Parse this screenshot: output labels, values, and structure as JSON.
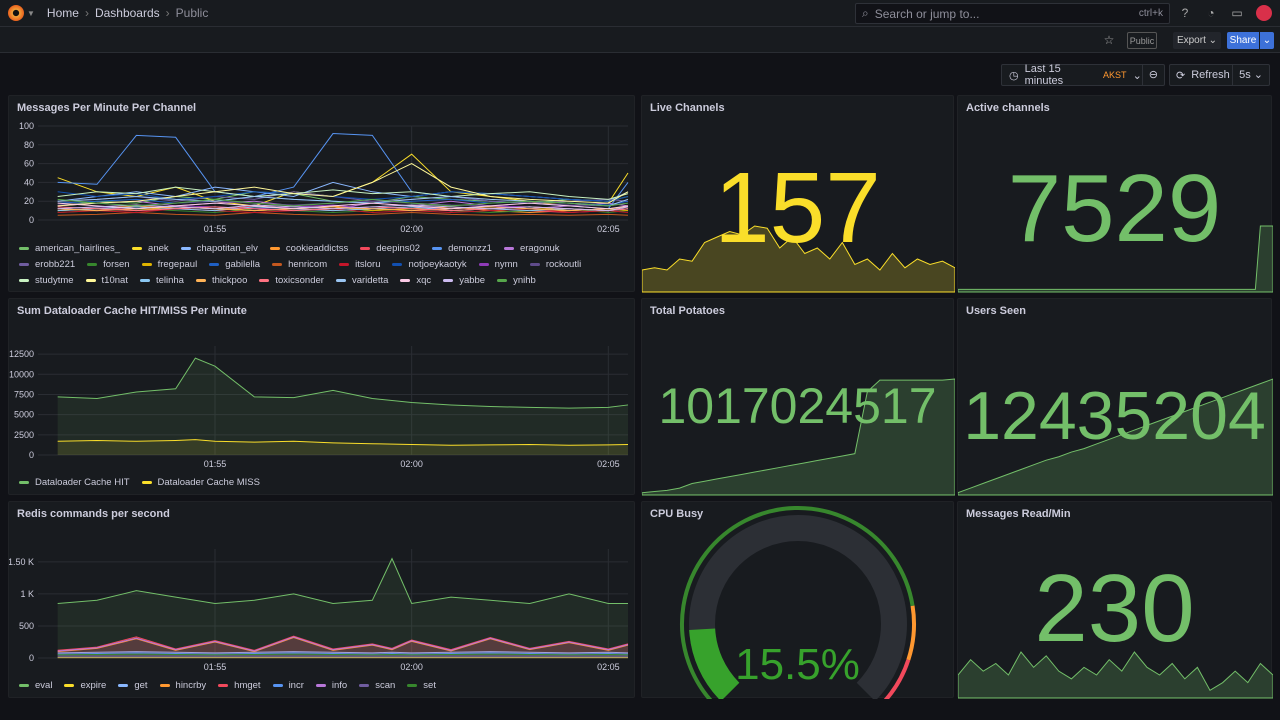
{
  "topbar": {
    "breadcrumbs": [
      "Home",
      "Dashboards",
      "Public"
    ],
    "search_placeholder": "Search or jump to...",
    "search_shortcut": "ctrl+k"
  },
  "toolbar": {
    "public_badge": "Public",
    "export_label": "Export",
    "share_label": "Share",
    "time_range": "Last 15 minutes",
    "timezone": "AKST",
    "refresh_label": "Refresh",
    "refresh_interval": "5s"
  },
  "colors": {
    "green": "#73bf69",
    "yellow": "#fade2a",
    "orange": "#ff9830",
    "red": "#f2495c",
    "blue": "#3d71d9"
  },
  "panels": {
    "messages_per_minute": {
      "title": "Messages Per Minute Per Channel"
    },
    "dataloader": {
      "title": "Sum Dataloader Cache HIT/MISS Per Minute"
    },
    "redis": {
      "title": "Redis commands per second"
    },
    "live_channels": {
      "title": "Live Channels",
      "value": "157",
      "color": "#fade2a",
      "spark": [
        20,
        22,
        20,
        30,
        28,
        45,
        50,
        55,
        52,
        60,
        58,
        40,
        50,
        35,
        40,
        30,
        45,
        25,
        30,
        20,
        35,
        22,
        30,
        25,
        28,
        22
      ]
    },
    "active_channels": {
      "title": "Active channels",
      "value": "7529",
      "color": "#73bf69",
      "spark": [
        2,
        2,
        2,
        2,
        2,
        2,
        2,
        2,
        2,
        2,
        2,
        2,
        2,
        2,
        2,
        2,
        2,
        2,
        2,
        2,
        2,
        2,
        2,
        2,
        50,
        50
      ]
    },
    "total_potatoes": {
      "title": "Total Potatoes",
      "value": "1017024517",
      "color": "#73bf69",
      "spark": [
        2,
        3,
        4,
        6,
        10,
        12,
        14,
        16,
        18,
        20,
        22,
        24,
        26,
        28,
        30,
        32,
        34,
        36,
        90,
        100,
        100,
        100,
        100,
        100,
        100,
        101
      ]
    },
    "users_seen": {
      "title": "Users Seen",
      "value": "12435204",
      "color": "#73bf69",
      "spark": [
        2,
        6,
        10,
        14,
        18,
        22,
        26,
        30,
        33,
        37,
        40,
        44,
        48,
        52,
        56,
        60,
        64,
        68,
        72,
        76,
        80,
        84,
        88,
        92,
        96,
        100
      ]
    },
    "cpu_busy": {
      "title": "CPU Busy",
      "value": "15.5%",
      "percent": 15.5,
      "thresholds": [
        "#37872d",
        "#ff9830",
        "#f2495c"
      ]
    },
    "messages_read": {
      "title": "Messages Read/Min",
      "value": "230",
      "color": "#73bf69",
      "spark": [
        30,
        50,
        35,
        45,
        30,
        60,
        40,
        55,
        35,
        25,
        40,
        30,
        50,
        35,
        60,
        40,
        30,
        45,
        25,
        40,
        10,
        20,
        35,
        20,
        45,
        30
      ]
    }
  },
  "chart_data": [
    {
      "type": "line",
      "title": "Messages Per Minute Per Channel",
      "x": [
        "01:51",
        "01:52",
        "01:53",
        "01:54",
        "01:55",
        "01:56",
        "01:57",
        "01:58",
        "01:59",
        "02:00",
        "02:01",
        "02:02",
        "02:03",
        "02:04",
        "02:05",
        "02:05:30"
      ],
      "xticks": [
        "01:55",
        "02:00",
        "02:05"
      ],
      "xlim": [
        "01:50:30",
        "02:05:30"
      ],
      "ylim": [
        0,
        100
      ],
      "yticks": [
        "0",
        "20",
        "40",
        "60",
        "80",
        "100"
      ],
      "legend": "bottom",
      "series": [
        {
          "name": "american_hairlines_",
          "color": "#73bf69",
          "values": [
            15,
            20,
            18,
            25,
            22,
            30,
            28,
            20,
            18,
            25,
            22,
            20,
            18,
            22,
            20,
            25
          ]
        },
        {
          "name": "anek",
          "color": "#fade2a",
          "values": [
            45,
            30,
            25,
            35,
            20,
            15,
            30,
            25,
            40,
            70,
            30,
            25,
            20,
            15,
            18,
            50
          ]
        },
        {
          "name": "chapotitan_elv",
          "color": "#8ab8ff",
          "values": [
            20,
            25,
            30,
            25,
            35,
            30,
            25,
            40,
            30,
            25,
            30,
            28,
            25,
            22,
            20,
            30
          ]
        },
        {
          "name": "cookieaddictss",
          "color": "#ff9830",
          "values": [
            10,
            12,
            15,
            12,
            14,
            10,
            12,
            15,
            10,
            12,
            14,
            10,
            8,
            10,
            12,
            10
          ]
        },
        {
          "name": "deepins02",
          "color": "#f2495c",
          "values": [
            12,
            10,
            14,
            12,
            10,
            15,
            12,
            10,
            12,
            14,
            10,
            12,
            10,
            8,
            10,
            12
          ]
        },
        {
          "name": "demonzz1",
          "color": "#5794f2",
          "values": [
            40,
            38,
            90,
            88,
            30,
            25,
            35,
            92,
            90,
            30,
            25,
            20,
            18,
            15,
            12,
            40
          ]
        },
        {
          "name": "eragonuk",
          "color": "#b877d9",
          "values": [
            15,
            18,
            20,
            15,
            18,
            20,
            15,
            12,
            18,
            15,
            20,
            15,
            12,
            15,
            18,
            15
          ]
        },
        {
          "name": "erobb221",
          "color": "#705da0",
          "values": [
            20,
            22,
            25,
            20,
            25,
            22,
            30,
            25,
            20,
            22,
            25,
            20,
            18,
            20,
            22,
            20
          ]
        },
        {
          "name": "forsen",
          "color": "#37872d",
          "values": [
            8,
            10,
            12,
            10,
            8,
            12,
            10,
            8,
            10,
            12,
            10,
            8,
            10,
            12,
            8,
            10
          ]
        },
        {
          "name": "fregepaul",
          "color": "#e0b400",
          "values": [
            10,
            12,
            10,
            14,
            12,
            10,
            12,
            14,
            10,
            12,
            10,
            12,
            14,
            10,
            12,
            10
          ]
        },
        {
          "name": "gabilella",
          "color": "#1f60c4",
          "values": [
            18,
            20,
            22,
            18,
            20,
            25,
            22,
            20,
            18,
            20,
            22,
            18,
            20,
            18,
            16,
            20
          ]
        },
        {
          "name": "henricom",
          "color": "#c4581f",
          "values": [
            5,
            6,
            8,
            6,
            5,
            8,
            6,
            5,
            6,
            8,
            6,
            5,
            6,
            5,
            6,
            5
          ]
        },
        {
          "name": "itsloru",
          "color": "#c4162a",
          "values": [
            8,
            10,
            8,
            12,
            10,
            8,
            10,
            12,
            8,
            10,
            8,
            10,
            12,
            8,
            10,
            8
          ]
        },
        {
          "name": "notjoeykaotyk",
          "color": "#1250b0",
          "values": [
            30,
            25,
            28,
            22,
            25,
            30,
            28,
            25,
            22,
            25,
            30,
            28,
            25,
            22,
            20,
            25
          ]
        },
        {
          "name": "nymn",
          "color": "#8f3bb8",
          "values": [
            12,
            14,
            12,
            15,
            14,
            12,
            14,
            16,
            12,
            14,
            12,
            15,
            14,
            12,
            10,
            12
          ]
        },
        {
          "name": "rockoutli",
          "color": "#5f4b8b",
          "values": [
            16,
            18,
            15,
            18,
            20,
            18,
            16,
            18,
            20,
            18,
            16,
            15,
            18,
            16,
            15,
            18
          ]
        },
        {
          "name": "studytme",
          "color": "#c8f2c2",
          "values": [
            25,
            30,
            28,
            35,
            30,
            25,
            28,
            32,
            28,
            30,
            25,
            28,
            30,
            25,
            22,
            28
          ]
        },
        {
          "name": "t10nat",
          "color": "#fff899",
          "values": [
            15,
            18,
            20,
            25,
            30,
            35,
            28,
            25,
            40,
            60,
            35,
            25,
            22,
            20,
            18,
            30
          ]
        },
        {
          "name": "telinha",
          "color": "#8ac7f2",
          "values": [
            10,
            12,
            14,
            12,
            10,
            14,
            12,
            10,
            12,
            14,
            10,
            12,
            10,
            12,
            10,
            12
          ]
        },
        {
          "name": "thickpoo",
          "color": "#ffb357",
          "values": [
            12,
            10,
            12,
            14,
            12,
            10,
            12,
            14,
            12,
            10,
            12,
            14,
            12,
            10,
            12,
            14
          ]
        },
        {
          "name": "toxicsonder",
          "color": "#ff7383",
          "values": [
            14,
            12,
            10,
            12,
            14,
            12,
            10,
            12,
            14,
            12,
            10,
            12,
            14,
            12,
            10,
            12
          ]
        },
        {
          "name": "varidetta",
          "color": "#9ac5f2",
          "values": [
            20,
            22,
            25,
            22,
            20,
            25,
            22,
            20,
            18,
            22,
            25,
            22,
            20,
            18,
            15,
            22
          ]
        },
        {
          "name": "xqc",
          "color": "#fbc9e6",
          "values": [
            18,
            15,
            12,
            15,
            18,
            15,
            12,
            15,
            18,
            15,
            12,
            15,
            18,
            15,
            12,
            15
          ]
        },
        {
          "name": "yabbe",
          "color": "#ccbbf0",
          "values": [
            12,
            14,
            16,
            14,
            12,
            16,
            14,
            12,
            14,
            16,
            14,
            12,
            14,
            12,
            10,
            14
          ]
        },
        {
          "name": "ynihb",
          "color": "#56a64b",
          "values": [
            22,
            18,
            15,
            18,
            22,
            18,
            15,
            18,
            22,
            18,
            15,
            18,
            20,
            18,
            15,
            18
          ]
        }
      ]
    },
    {
      "type": "area",
      "title": "Sum Dataloader Cache HIT/MISS Per Minute",
      "x": [
        "01:51",
        "01:52",
        "01:53",
        "01:54",
        "01:54:30",
        "01:55",
        "01:56",
        "01:57",
        "01:58",
        "01:59",
        "02:00",
        "02:01",
        "02:02",
        "02:03",
        "02:04",
        "02:05",
        "02:05:30"
      ],
      "xticks": [
        "01:55",
        "02:00",
        "02:05"
      ],
      "xlim": [
        "01:50:30",
        "02:05:30"
      ],
      "ylim": [
        0,
        13500
      ],
      "yticks": [
        "0",
        "2500",
        "5000",
        "7500",
        "10000",
        "12500"
      ],
      "legend": "bottom",
      "series": [
        {
          "name": "Dataloader Cache HIT",
          "color": "#73bf69",
          "values": [
            7200,
            7000,
            7800,
            8200,
            12000,
            11000,
            7200,
            7100,
            8000,
            7000,
            6500,
            6200,
            6000,
            5900,
            5800,
            5900,
            6200
          ]
        },
        {
          "name": "Dataloader Cache MISS",
          "color": "#fade2a",
          "values": [
            1700,
            1800,
            1700,
            1800,
            1900,
            1700,
            1600,
            1700,
            1500,
            1400,
            1300,
            1200,
            1250,
            1300,
            1200,
            1250,
            1300
          ]
        }
      ]
    },
    {
      "type": "area",
      "title": "Redis commands per second",
      "x": [
        "01:51",
        "01:52",
        "01:53",
        "01:54",
        "01:55",
        "01:56",
        "01:57",
        "01:58",
        "01:59",
        "01:59:30",
        "02:00",
        "02:01",
        "02:02",
        "02:03",
        "02:04",
        "02:05",
        "02:05:30"
      ],
      "xticks": [
        "01:55",
        "02:00",
        "02:05"
      ],
      "xlim": [
        "01:50:30",
        "02:05:30"
      ],
      "ylim": [
        0,
        1700
      ],
      "yticks": [
        "0",
        "500",
        "1 K",
        "1.50 K"
      ],
      "legend": "bottom",
      "series": [
        {
          "name": "eval",
          "color": "#73bf69",
          "values": [
            850,
            900,
            1050,
            950,
            850,
            900,
            1000,
            850,
            900,
            1550,
            850,
            950,
            900,
            850,
            1000,
            850,
            850
          ]
        },
        {
          "name": "expire",
          "color": "#fade2a",
          "values": [
            5,
            5,
            5,
            5,
            5,
            5,
            5,
            5,
            5,
            5,
            5,
            5,
            5,
            5,
            5,
            5,
            5
          ]
        },
        {
          "name": "get",
          "color": "#8ab8ff",
          "values": [
            80,
            90,
            100,
            90,
            80,
            90,
            100,
            90,
            80,
            90,
            80,
            90,
            100,
            90,
            80,
            90,
            80
          ]
        },
        {
          "name": "hincrby",
          "color": "#ff9830",
          "values": [
            100,
            150,
            300,
            120,
            250,
            100,
            320,
            120,
            200,
            130,
            260,
            110,
            300,
            130,
            240,
            120,
            200
          ]
        },
        {
          "name": "hmget",
          "color": "#f2495c",
          "values": [
            120,
            170,
            330,
            140,
            270,
            120,
            340,
            140,
            220,
            150,
            280,
            130,
            320,
            150,
            260,
            140,
            220
          ]
        },
        {
          "name": "incr",
          "color": "#5794f2",
          "values": [
            60,
            70,
            80,
            70,
            60,
            70,
            80,
            70,
            60,
            70,
            60,
            70,
            80,
            70,
            60,
            70,
            60
          ]
        },
        {
          "name": "info",
          "color": "#b877d9",
          "values": [
            110,
            160,
            310,
            130,
            260,
            110,
            330,
            130,
            210,
            140,
            270,
            120,
            310,
            140,
            250,
            130,
            210
          ]
        },
        {
          "name": "scan",
          "color": "#705da0",
          "values": [
            30,
            30,
            30,
            30,
            30,
            30,
            30,
            30,
            30,
            30,
            30,
            30,
            30,
            30,
            30,
            30,
            30
          ]
        },
        {
          "name": "set",
          "color": "#37872d",
          "values": [
            50,
            55,
            60,
            55,
            50,
            55,
            60,
            55,
            50,
            55,
            50,
            55,
            60,
            55,
            50,
            55,
            50
          ]
        }
      ]
    }
  ]
}
